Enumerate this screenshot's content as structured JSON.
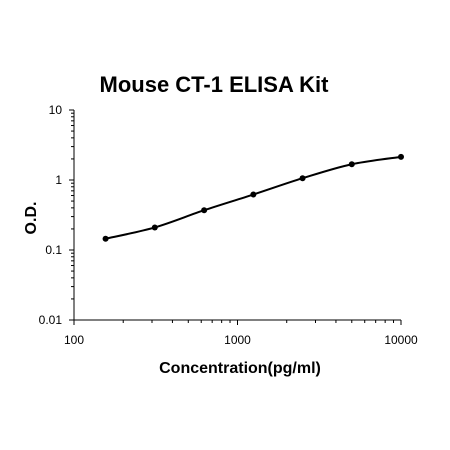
{
  "chart_data": {
    "type": "line",
    "title": "Mouse CT-1 ELISA Kit",
    "xlabel": "Concentration(pg/ml)",
    "ylabel": "O.D.",
    "x_scale": "log",
    "y_scale": "log",
    "xlim": [
      100,
      10000
    ],
    "ylim": [
      0.01,
      10
    ],
    "x_ticks": [
      "100",
      "1000",
      "10000"
    ],
    "y_ticks": [
      "10",
      "1",
      "0.1",
      "0.01"
    ],
    "grid": false,
    "legend": "none",
    "series": [
      {
        "x": [
          156,
          312,
          625,
          1250,
          2500,
          5000,
          10000
        ],
        "y": [
          0.145,
          0.21,
          0.37,
          0.62,
          1.06,
          1.68,
          2.14
        ]
      }
    ],
    "colors": {
      "line": "#000000",
      "marker": "#000000"
    }
  }
}
